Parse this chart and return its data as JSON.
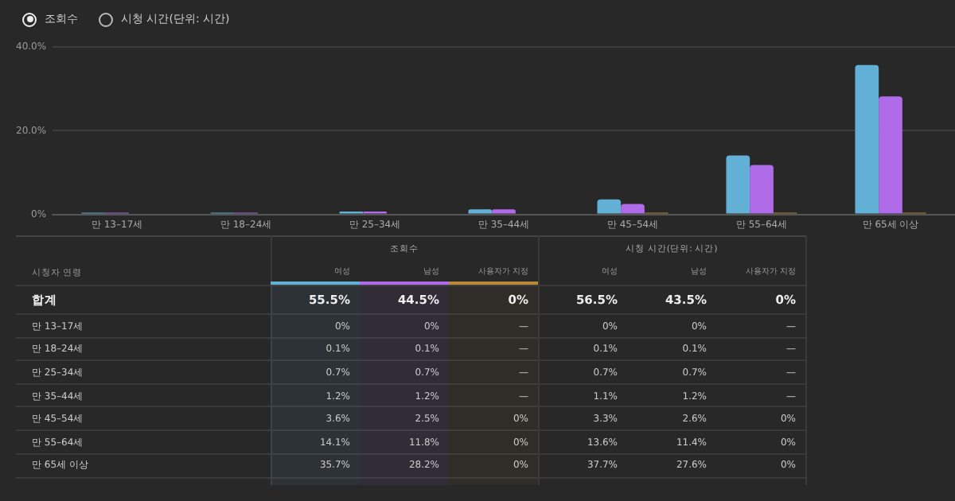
{
  "chart_data": [
    {
      "type": "bar",
      "categories": [
        "만 13–17세",
        "만 18–24세",
        "만 25–34세",
        "만 35–44세",
        "만 45–54세",
        "만 55–64세",
        "만 65세 이상"
      ],
      "series": [
        {
          "color": "#62b0d6",
          "values": [
            0,
            0.1,
            0.7,
            1.2,
            3.6,
            14.1,
            35.7
          ]
        },
        {
          "color": "#b06be8",
          "values": [
            0,
            0.1,
            0.7,
            1.2,
            2.5,
            11.8,
            28.2
          ]
        },
        {
          "color": "#b8893a",
          "values": [
            null,
            null,
            null,
            null,
            0,
            0,
            0
          ]
        }
      ],
      "ylim": [
        0,
        40
      ],
      "yticks": [
        {
          "value": 0,
          "label": "0%"
        },
        {
          "value": 20,
          "label": "20.0%"
        },
        {
          "value": 40,
          "label": "40.0%"
        }
      ],
      "grid": "y",
      "legend": false
    },
    {
      "type": "other",
      "title": "조회수",
      "annotations": [
        "시청 시간(단위: 시간)"
      ],
      "xlabel": "시청자 연령",
      "categories": [
        "합계",
        "만 13–17세",
        "만 18–24세",
        "만 25–34세",
        "만 35–44세",
        "만 45–54세",
        "만 55–64세",
        "만 65세 이상"
      ],
      "series": [
        {
          "name": "여성",
          "color": "#62b0d6",
          "values": [
            55.5,
            0,
            0.1,
            0.7,
            1.2,
            3.6,
            14.1,
            35.7
          ],
          "value_labels": [
            "55.5%",
            "0%",
            "0.1%",
            "0.7%",
            "1.2%",
            "3.6%",
            "14.1%",
            "35.7%"
          ]
        },
        {
          "name": "남성",
          "color": "#b06be8",
          "values": [
            44.5,
            0,
            0.1,
            0.7,
            1.2,
            2.5,
            11.8,
            28.2
          ],
          "value_labels": [
            "44.5%",
            "0%",
            "0.1%",
            "0.7%",
            "1.2%",
            "2.5%",
            "11.8%",
            "28.2%"
          ]
        },
        {
          "name": "사용자가 지정",
          "color": "#b8893a",
          "values": [
            0,
            null,
            null,
            null,
            null,
            0,
            0,
            0
          ],
          "value_labels": [
            "0%",
            "—",
            "—",
            "—",
            "—",
            "0%",
            "0%",
            "0%"
          ]
        },
        {
          "name": "여성",
          "values": [
            56.5,
            0,
            0.1,
            0.7,
            1.1,
            3.3,
            13.6,
            37.7
          ],
          "value_labels": [
            "56.5%",
            "0%",
            "0.1%",
            "0.7%",
            "1.1%",
            "3.3%",
            "13.6%",
            "37.7%"
          ]
        },
        {
          "name": "남성",
          "values": [
            43.5,
            0,
            0.1,
            0.7,
            1.2,
            2.6,
            11.4,
            27.6
          ],
          "value_labels": [
            "43.5%",
            "0%",
            "0.1%",
            "0.7%",
            "1.2%",
            "2.6%",
            "11.4%",
            "27.6%"
          ]
        },
        {
          "name": "사용자가 지정",
          "values": [
            0,
            null,
            null,
            null,
            null,
            0,
            0,
            0
          ],
          "value_labels": [
            "0%",
            "—",
            "—",
            "—",
            "—",
            "0%",
            "0%",
            "0%"
          ]
        }
      ]
    }
  ]
}
